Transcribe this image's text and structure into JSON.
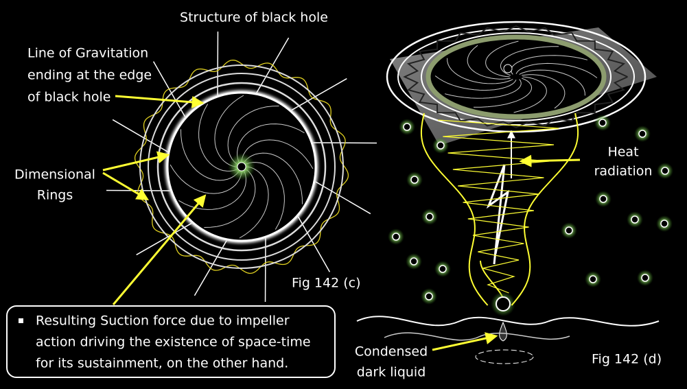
{
  "labels": [
    {
      "lines": [
        "Structure of black hole"
      ]
    },
    {
      "lines": [
        "Line of Gravitation",
        "ending at the edge",
        "of black hole"
      ]
    },
    {
      "lines": [
        "Dimensional",
        "Rings"
      ]
    },
    {
      "lines": [
        "Fig 142 (c)"
      ]
    },
    {
      "lines": [
        "Resulting Suction force due to impeller",
        "action driving the existence of space-time",
        "for its sustainment, on the other hand."
      ]
    },
    {
      "lines": [
        "Heat",
        "radiation"
      ]
    },
    {
      "lines": [
        "Condensed",
        "dark liquid"
      ]
    },
    {
      "lines": [
        "Fig 142 (d)"
      ]
    }
  ]
}
